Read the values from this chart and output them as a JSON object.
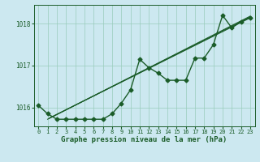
{
  "background_color": "#cce8f0",
  "plot_bg_color": "#cce8f0",
  "grid_color": "#99ccbb",
  "line_color": "#1a5c28",
  "xlabel": "Graphe pression niveau de la mer (hPa)",
  "xlabel_color": "#1a5c28",
  "tick_color": "#1a5c28",
  "xlim": [
    -0.5,
    23.5
  ],
  "ylim": [
    1015.55,
    1018.45
  ],
  "yticks": [
    1016,
    1017,
    1018
  ],
  "xticks": [
    0,
    1,
    2,
    3,
    4,
    5,
    6,
    7,
    8,
    9,
    10,
    11,
    12,
    13,
    14,
    15,
    16,
    17,
    18,
    19,
    20,
    21,
    22,
    23
  ],
  "main_series": [
    1016.05,
    1015.85,
    1015.72,
    1015.72,
    1015.72,
    1015.72,
    1015.72,
    1015.72,
    1015.85,
    1016.1,
    1016.42,
    1017.15,
    1016.95,
    1016.82,
    1016.65,
    1016.65,
    1016.65,
    1017.18,
    1017.18,
    1017.5,
    1018.2,
    1017.9,
    1018.05,
    1018.15
  ],
  "trend_starts": [
    1015.72,
    1015.74,
    1015.76
  ],
  "trend_ends": [
    1018.18,
    1018.16,
    1018.14
  ],
  "marker": "D",
  "markersize": 2.5,
  "linewidth_main": 1.0,
  "linewidth_trend": 0.8,
  "tick_fontsize": 5.0,
  "xlabel_fontsize": 6.5
}
